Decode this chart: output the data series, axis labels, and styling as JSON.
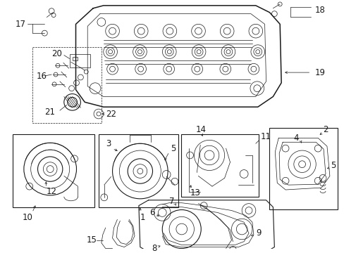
{
  "bg_color": "#ffffff",
  "line_color": "#1a1a1a",
  "fig_width": 4.89,
  "fig_height": 3.6,
  "dpi": 100,
  "font_size": 7.5,
  "bold_font_size": 8.5
}
